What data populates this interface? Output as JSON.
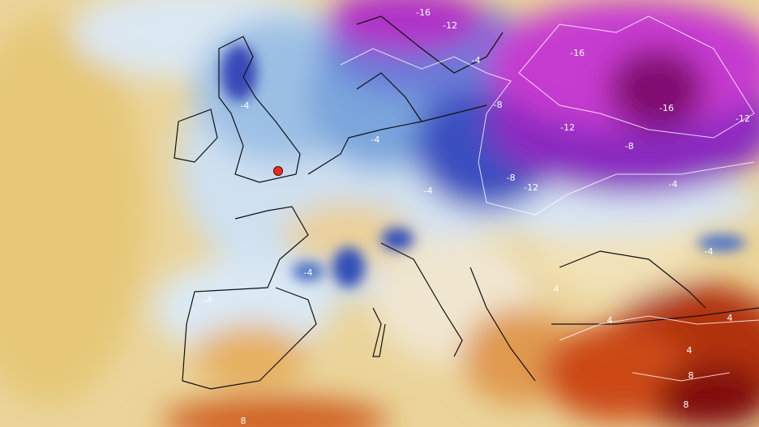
{
  "map": {
    "contour_labels": [
      "-16",
      "-12",
      "-16",
      "-4",
      "-4",
      "-8",
      "-12",
      "-16",
      "-12",
      "-8",
      "-4",
      "-8",
      "-12",
      "-4",
      "-4",
      "-4",
      "-4",
      "-4",
      "4",
      "4",
      "4",
      "4",
      "8",
      "8",
      "8"
    ]
  }
}
